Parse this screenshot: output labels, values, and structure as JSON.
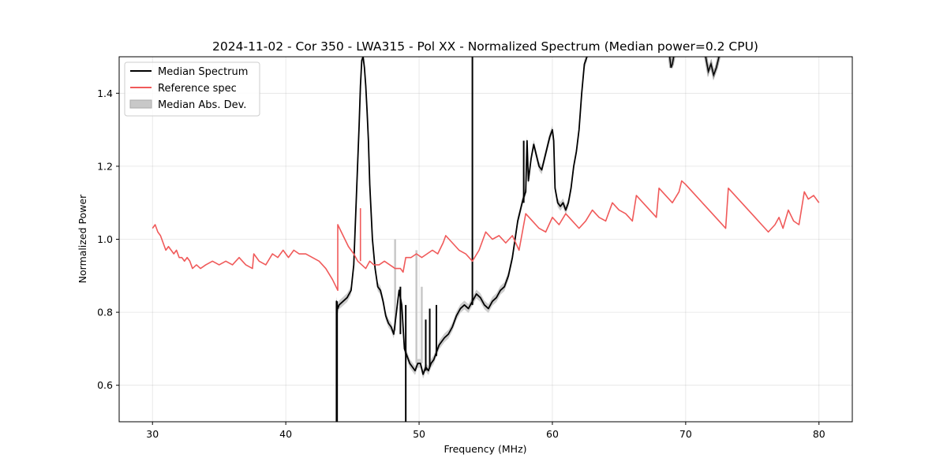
{
  "chart_data": {
    "type": "line",
    "title": "2024-11-02 - Cor 350 - LWA315 - Pol XX - Normalized Spectrum (Median power=0.2 CPU)",
    "xlabel": "Frequency (MHz)",
    "ylabel": "Normalized Power",
    "xlim": [
      27.5,
      82.5
    ],
    "ylim": [
      0.5,
      1.5
    ],
    "xticks": [
      30,
      40,
      50,
      60,
      70,
      80
    ],
    "yticks": [
      0.6,
      0.8,
      1.0,
      1.2,
      1.4
    ],
    "xtick_labels": [
      "30",
      "40",
      "50",
      "60",
      "70",
      "80"
    ],
    "ytick_labels": [
      "0.6",
      "0.8",
      "1.0",
      "1.2",
      "1.4"
    ],
    "grid": true,
    "legend_position": "top-left",
    "series": [
      {
        "name": "Median Spectrum",
        "color": "#000000",
        "x": [
          43.8,
          43.8,
          43.9,
          44.0,
          44.3,
          44.6,
          44.9,
          45.1,
          45.3,
          45.5,
          45.6,
          45.7,
          45.8,
          45.9,
          46.0,
          46.1,
          46.2,
          46.3,
          46.5,
          46.7,
          46.9,
          47.1,
          47.3,
          47.5,
          47.7,
          47.9,
          48.1,
          48.3,
          48.5,
          48.7,
          48.9,
          49.1,
          49.3,
          49.5,
          49.7,
          49.9,
          50.1,
          50.3,
          50.5,
          50.7,
          50.9,
          51.1,
          51.3,
          51.5,
          51.7,
          51.9,
          52.2,
          52.5,
          52.8,
          53.1,
          53.4,
          53.7,
          54.0,
          54.3,
          54.6,
          54.9,
          55.2,
          55.5,
          55.8,
          56.1,
          56.4,
          56.7,
          57.0,
          57.2,
          57.4,
          57.6,
          57.8,
          58.0,
          58.1,
          58.2,
          58.4,
          58.6,
          58.8,
          59.0,
          59.2,
          59.4,
          59.6,
          59.8,
          60.0,
          60.1,
          60.2,
          60.4,
          60.6,
          60.8,
          61.0,
          61.2,
          61.4,
          61.6,
          61.8,
          62.0,
          62.2,
          62.4,
          62.6
        ],
        "y": [
          0.5,
          0.83,
          0.81,
          0.82,
          0.83,
          0.84,
          0.86,
          0.93,
          1.12,
          1.31,
          1.42,
          1.49,
          1.5,
          1.47,
          1.42,
          1.35,
          1.27,
          1.15,
          1.0,
          0.92,
          0.87,
          0.86,
          0.83,
          0.79,
          0.77,
          0.76,
          0.74,
          0.8,
          0.86,
          0.82,
          0.7,
          0.68,
          0.66,
          0.65,
          0.64,
          0.66,
          0.66,
          0.63,
          0.65,
          0.64,
          0.66,
          0.67,
          0.69,
          0.71,
          0.72,
          0.73,
          0.74,
          0.76,
          0.79,
          0.81,
          0.82,
          0.81,
          0.83,
          0.85,
          0.84,
          0.82,
          0.81,
          0.83,
          0.84,
          0.86,
          0.87,
          0.9,
          0.95,
          1.0,
          1.05,
          1.08,
          1.11,
          1.13,
          1.27,
          1.16,
          1.22,
          1.26,
          1.23,
          1.2,
          1.19,
          1.22,
          1.25,
          1.28,
          1.3,
          1.27,
          1.14,
          1.1,
          1.09,
          1.1,
          1.08,
          1.1,
          1.14,
          1.2,
          1.24,
          1.3,
          1.4,
          1.48,
          1.5
        ]
      },
      {
        "name": "Reference spec",
        "color": "#f05a5a",
        "x": [
          30.0,
          30.2,
          30.4,
          30.6,
          30.8,
          31.0,
          31.2,
          31.4,
          31.6,
          31.8,
          32.0,
          32.2,
          32.4,
          32.6,
          32.8,
          33.0,
          33.3,
          33.6,
          34.0,
          34.5,
          35.0,
          35.5,
          36.0,
          36.5,
          37.0,
          37.5,
          37.6,
          38.0,
          38.5,
          39.0,
          39.4,
          39.8,
          40.2,
          40.6,
          41.0,
          41.5,
          42.0,
          42.5,
          43.0,
          43.5,
          43.9,
          43.9,
          44.3,
          44.7,
          45.1,
          45.4,
          45.7,
          46.0,
          46.3,
          46.6,
          47.0,
          47.4,
          47.8,
          48.2,
          48.6,
          48.8,
          49.0,
          49.4,
          49.8,
          50.2,
          50.6,
          51.0,
          51.4,
          51.8,
          52.0,
          52.5,
          53.0,
          53.5,
          54.0,
          54.5,
          55.0,
          55.5,
          56.0,
          56.5,
          57.0,
          57.5,
          58.0,
          58.5,
          59.0,
          59.5,
          60.0,
          60.5,
          61.0,
          61.5,
          62.0,
          62.5,
          63.0,
          63.5,
          64.0,
          64.5,
          65.0,
          65.5,
          66.0,
          66.3,
          66.8,
          67.3,
          67.8,
          68.0,
          68.5,
          69.0,
          69.5,
          69.7,
          70.0,
          70.5,
          71.0,
          71.5,
          72.0,
          72.5,
          73.0,
          73.2,
          73.7,
          74.2,
          74.7,
          75.2,
          75.7,
          76.2,
          76.7,
          77.0,
          77.3,
          77.7,
          78.1,
          78.5,
          78.9,
          79.2,
          79.6,
          80.0
        ],
        "y": [
          1.03,
          1.04,
          1.02,
          1.01,
          0.99,
          0.97,
          0.98,
          0.97,
          0.96,
          0.97,
          0.95,
          0.95,
          0.94,
          0.95,
          0.94,
          0.92,
          0.93,
          0.92,
          0.93,
          0.94,
          0.93,
          0.94,
          0.93,
          0.95,
          0.93,
          0.92,
          0.96,
          0.94,
          0.93,
          0.96,
          0.95,
          0.97,
          0.95,
          0.97,
          0.96,
          0.96,
          0.95,
          0.94,
          0.92,
          0.89,
          0.86,
          1.04,
          1.01,
          0.98,
          0.96,
          0.94,
          0.93,
          0.92,
          0.94,
          0.93,
          0.93,
          0.94,
          0.93,
          0.92,
          0.92,
          0.91,
          0.95,
          0.95,
          0.96,
          0.95,
          0.96,
          0.97,
          0.96,
          0.99,
          1.01,
          0.99,
          0.97,
          0.96,
          0.94,
          0.97,
          1.02,
          1.0,
          1.01,
          0.99,
          1.01,
          0.97,
          1.07,
          1.05,
          1.03,
          1.02,
          1.06,
          1.04,
          1.07,
          1.05,
          1.03,
          1.05,
          1.08,
          1.06,
          1.05,
          1.1,
          1.08,
          1.07,
          1.05,
          1.12,
          1.1,
          1.08,
          1.06,
          1.14,
          1.12,
          1.1,
          1.13,
          1.16,
          1.15,
          1.13,
          1.11,
          1.09,
          1.07,
          1.05,
          1.03,
          1.14,
          1.12,
          1.1,
          1.08,
          1.06,
          1.04,
          1.02,
          1.04,
          1.06,
          1.03,
          1.08,
          1.05,
          1.04,
          1.13,
          1.11,
          1.12,
          1.1
        ]
      }
    ],
    "vertical_spikes": [
      {
        "x": 43.85,
        "y_low": 0.5,
        "y_high": 0.83
      },
      {
        "x": 49.0,
        "y_low": 0.5,
        "y_high": 0.82
      },
      {
        "x": 54.0,
        "y_low": 0.82,
        "y_high": 1.5
      },
      {
        "x": 50.5,
        "y_low": 0.64,
        "y_high": 0.78
      },
      {
        "x": 50.8,
        "y_low": 0.65,
        "y_high": 0.81
      },
      {
        "x": 51.3,
        "y_low": 0.68,
        "y_high": 0.82
      },
      {
        "x": 48.6,
        "y_low": 0.74,
        "y_high": 0.87
      },
      {
        "x": 57.85,
        "y_low": 1.1,
        "y_high": 1.27
      }
    ],
    "upper_fragments": [
      {
        "x": [
          68.8,
          68.9,
          69.0,
          69.1
        ],
        "y": [
          1.5,
          1.47,
          1.48,
          1.5
        ]
      },
      {
        "x": [
          71.5,
          71.7,
          71.9,
          72.1,
          72.3,
          72.5
        ],
        "y": [
          1.5,
          1.46,
          1.48,
          1.45,
          1.47,
          1.5
        ]
      }
    ],
    "mad_band": {
      "name": "Median Abs. Dev.",
      "color": "#c8c8c8",
      "half_width": 0.012
    },
    "mad_spikes": [
      {
        "x": 48.2,
        "y_low": 0.75,
        "y_high": 1.0
      },
      {
        "x": 49.8,
        "y_low": 0.66,
        "y_high": 0.97
      },
      {
        "x": 50.2,
        "y_low": 0.66,
        "y_high": 0.87
      }
    ]
  }
}
